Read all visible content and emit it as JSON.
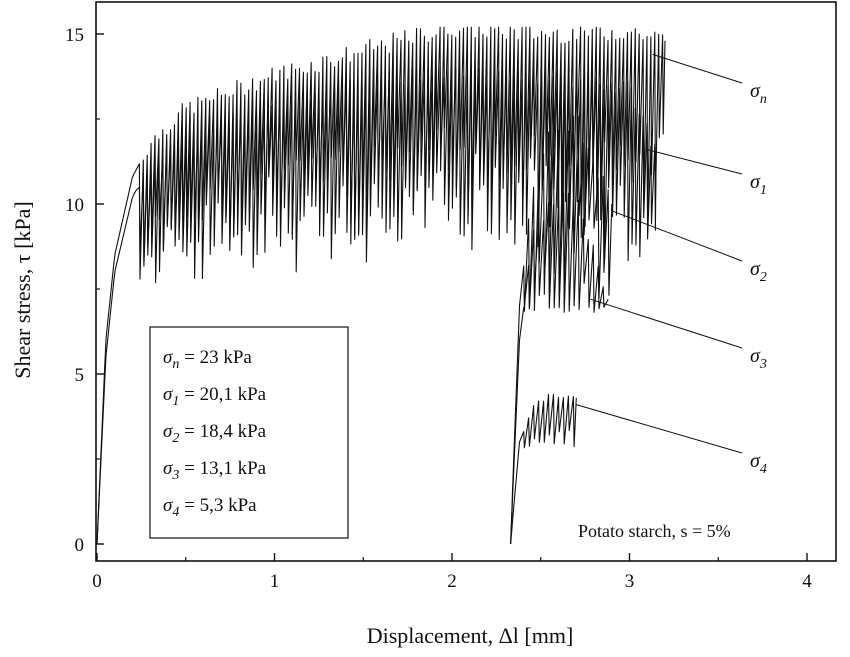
{
  "chart_data": {
    "type": "line",
    "title": "",
    "xlabel": "Displacement, Δl [mm]",
    "ylabel": "Shear stress, τ [kPa]",
    "xlim": [
      0,
      4.2
    ],
    "ylim": [
      -0.3,
      16
    ],
    "x_ticks": [
      0,
      1,
      2,
      3,
      4
    ],
    "y_ticks": [
      0,
      5,
      10,
      15
    ],
    "grid": false,
    "legend_position": "bottom-left",
    "annotation": "Potato starch, s = 5%",
    "legend": [
      {
        "sym": "σ",
        "sub": "n",
        "text": " = 23 kPa"
      },
      {
        "sym": "σ",
        "sub": "1",
        "text": " = 20,1 kPa"
      },
      {
        "sym": "σ",
        "sub": "2",
        "text": " = 18,4 kPa"
      },
      {
        "sym": "σ",
        "sub": "3",
        "text": " = 13,1 kPa"
      },
      {
        "sym": "σ",
        "sub": "4",
        "text": " = 5,3 kPa"
      }
    ],
    "series": [
      {
        "name": "σn",
        "sigma_kPa": 23,
        "x_start": 0,
        "x_end": 3.2,
        "peak_kPa": 15.2,
        "min_kPa": 7.2,
        "envelope_x": [
          0,
          0.05,
          0.1,
          0.2,
          0.3,
          0.5,
          1.0,
          1.5,
          2.0,
          2.5,
          3.0,
          3.2
        ],
        "envelope_y": [
          0,
          6.0,
          8.5,
          10.8,
          11.8,
          12.8,
          13.8,
          14.5,
          15.2,
          15.0,
          15.1,
          14.8
        ]
      },
      {
        "name": "σ1",
        "sigma_kPa": 20.1,
        "x_start": 0,
        "x_end": 3.15,
        "peak_kPa": 14.0,
        "min_kPa": 7.5,
        "envelope_x": [
          0,
          0.05,
          0.1,
          0.2,
          0.3,
          0.5,
          1.0,
          1.5,
          2.0,
          2.5,
          3.0,
          3.15
        ],
        "envelope_y": [
          0,
          5.5,
          8.0,
          10.2,
          11.2,
          12.2,
          13.0,
          13.6,
          14.0,
          13.8,
          13.5,
          11.5
        ]
      },
      {
        "name": "σ2",
        "sigma_kPa": 18.4,
        "x_start": 2.33,
        "x_end": 2.9,
        "peak_kPa": 12.8,
        "min_kPa": 6.8,
        "envelope_x": [
          2.33,
          2.38,
          2.45,
          2.55,
          2.7,
          2.9
        ],
        "envelope_y": [
          0,
          7.0,
          10.5,
          12.0,
          12.5,
          10.0
        ]
      },
      {
        "name": "σ3",
        "sigma_kPa": 13.1,
        "x_start": 2.33,
        "x_end": 2.88,
        "peak_kPa": 11.0,
        "min_kPa": 6.8,
        "envelope_x": [
          2.33,
          2.38,
          2.45,
          2.55,
          2.7,
          2.88
        ],
        "envelope_y": [
          0,
          6.0,
          9.0,
          10.0,
          10.3,
          7.2
        ]
      },
      {
        "name": "σ4",
        "sigma_kPa": 5.3,
        "x_start": 2.33,
        "x_end": 2.7,
        "peak_kPa": 4.4,
        "min_kPa": 2.8,
        "envelope_x": [
          2.33,
          2.38,
          2.45,
          2.55,
          2.7
        ],
        "envelope_y": [
          0,
          3.0,
          4.0,
          4.4,
          4.3
        ]
      }
    ]
  }
}
